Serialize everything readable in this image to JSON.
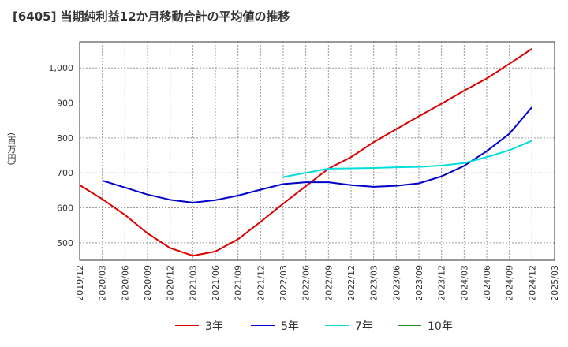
{
  "title": "[6405]  当期純利益12か月移動合計の平均値の推移",
  "chart_data": {
    "type": "line",
    "title": "[6405]  当期純利益12か月移動合計の平均値の推移",
    "ylabel": "(百万円)",
    "xlabel": "",
    "x_ticks": [
      "2019/12",
      "2020/03",
      "2020/06",
      "2020/09",
      "2020/12",
      "2021/03",
      "2021/06",
      "2021/09",
      "2021/12",
      "2022/03",
      "2022/06",
      "2022/09",
      "2022/12",
      "2023/03",
      "2023/06",
      "2023/09",
      "2023/12",
      "2024/03",
      "2024/06",
      "2024/09",
      "2024/12",
      "2025/03"
    ],
    "y_ticks": [
      500,
      600,
      700,
      800,
      900,
      1000
    ],
    "y_tick_labels": [
      "500",
      "600",
      "700",
      "800",
      "900",
      "1,000"
    ],
    "ylim": [
      450,
      1075
    ],
    "grid": true,
    "legend_position": "bottom",
    "series": [
      {
        "name": "3年",
        "color": "#dd0000",
        "x": [
          "2019/12",
          "2020/03",
          "2020/06",
          "2020/09",
          "2020/12",
          "2021/03",
          "2021/06",
          "2021/09",
          "2021/12",
          "2022/03",
          "2022/06",
          "2022/09",
          "2022/12",
          "2023/03",
          "2023/06",
          "2023/09",
          "2023/12",
          "2024/03",
          "2024/06",
          "2024/09",
          "2024/12"
        ],
        "values": [
          665,
          625,
          580,
          527,
          485,
          463,
          475,
          510,
          560,
          612,
          662,
          712,
          745,
          788,
          825,
          862,
          898,
          935,
          970,
          1012,
          1055
        ]
      },
      {
        "name": "5年",
        "color": "#0000cc",
        "x": [
          "2020/03",
          "2020/06",
          "2020/09",
          "2020/12",
          "2021/03",
          "2021/06",
          "2021/09",
          "2021/12",
          "2022/03",
          "2022/06",
          "2022/09",
          "2022/12",
          "2023/03",
          "2023/06",
          "2023/09",
          "2023/12",
          "2024/03",
          "2024/06",
          "2024/09",
          "2024/12"
        ],
        "values": [
          678,
          658,
          638,
          623,
          615,
          622,
          635,
          652,
          668,
          673,
          673,
          665,
          660,
          663,
          670,
          690,
          720,
          762,
          812,
          888
        ]
      },
      {
        "name": "7年",
        "color": "#00dddd",
        "x": [
          "2022/03",
          "2022/06",
          "2022/09",
          "2022/12",
          "2023/03",
          "2023/06",
          "2023/09",
          "2023/12",
          "2024/03",
          "2024/06",
          "2024/09",
          "2024/12"
        ],
        "values": [
          688,
          700,
          712,
          713,
          714,
          716,
          717,
          721,
          728,
          745,
          765,
          792
        ]
      },
      {
        "name": "10年",
        "color": "#228b22",
        "x": [],
        "values": []
      }
    ]
  }
}
